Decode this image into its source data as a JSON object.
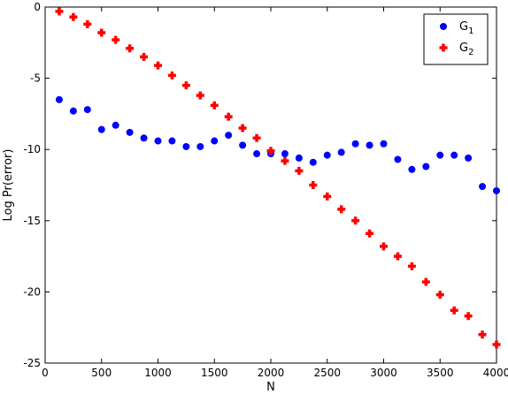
{
  "chart_data": {
    "type": "scatter",
    "xlabel": "N",
    "ylabel": "Log Pr(error)",
    "xlim": [
      0,
      4000
    ],
    "ylim": [
      -25,
      0
    ],
    "xticks": [
      0,
      500,
      1000,
      1500,
      2000,
      2500,
      3000,
      3500,
      4000
    ],
    "yticks": [
      0,
      -5,
      -10,
      -15,
      -20,
      -25
    ],
    "grid": false,
    "legend_position": "top-right",
    "series": [
      {
        "name": "G1",
        "label_main": "G",
        "label_sub": "1",
        "color": "#0000ff",
        "marker": "circle",
        "x": [
          125,
          250,
          375,
          500,
          625,
          750,
          875,
          1000,
          1125,
          1250,
          1375,
          1500,
          1625,
          1750,
          1875,
          2000,
          2125,
          2250,
          2375,
          2500,
          2625,
          2750,
          2875,
          3000,
          3125,
          3250,
          3375,
          3500,
          3625,
          3750,
          3875,
          4000
        ],
        "y": [
          -6.5,
          -7.3,
          -7.2,
          -8.6,
          -8.3,
          -8.8,
          -9.2,
          -9.4,
          -9.4,
          -9.8,
          -9.8,
          -9.4,
          -9.0,
          -9.7,
          -10.3,
          -10.3,
          -10.3,
          -10.6,
          -10.9,
          -10.4,
          -10.2,
          -9.6,
          -9.7,
          -9.6,
          -10.7,
          -11.4,
          -11.2,
          -10.4,
          -10.4,
          -10.6,
          -12.6,
          -12.9
        ]
      },
      {
        "name": "G2",
        "label_main": "G",
        "label_sub": "2",
        "color": "#ff0000",
        "marker": "plus",
        "x": [
          125,
          250,
          375,
          500,
          625,
          750,
          875,
          1000,
          1125,
          1250,
          1375,
          1500,
          1625,
          1750,
          1875,
          2000,
          2125,
          2250,
          2375,
          2500,
          2625,
          2750,
          2875,
          3000,
          3125,
          3250,
          3375,
          3500,
          3625,
          3750,
          3875,
          4000
        ],
        "y": [
          -0.3,
          -0.7,
          -1.2,
          -1.8,
          -2.3,
          -2.9,
          -3.5,
          -4.1,
          -4.8,
          -5.5,
          -6.2,
          -6.9,
          -7.7,
          -8.5,
          -9.2,
          -10.1,
          -10.8,
          -11.5,
          -12.5,
          -13.3,
          -14.2,
          -15.0,
          -15.9,
          -16.8,
          -17.5,
          -18.2,
          -19.3,
          -20.2,
          -21.3,
          -21.7,
          -23.0,
          -23.7
        ]
      }
    ]
  }
}
